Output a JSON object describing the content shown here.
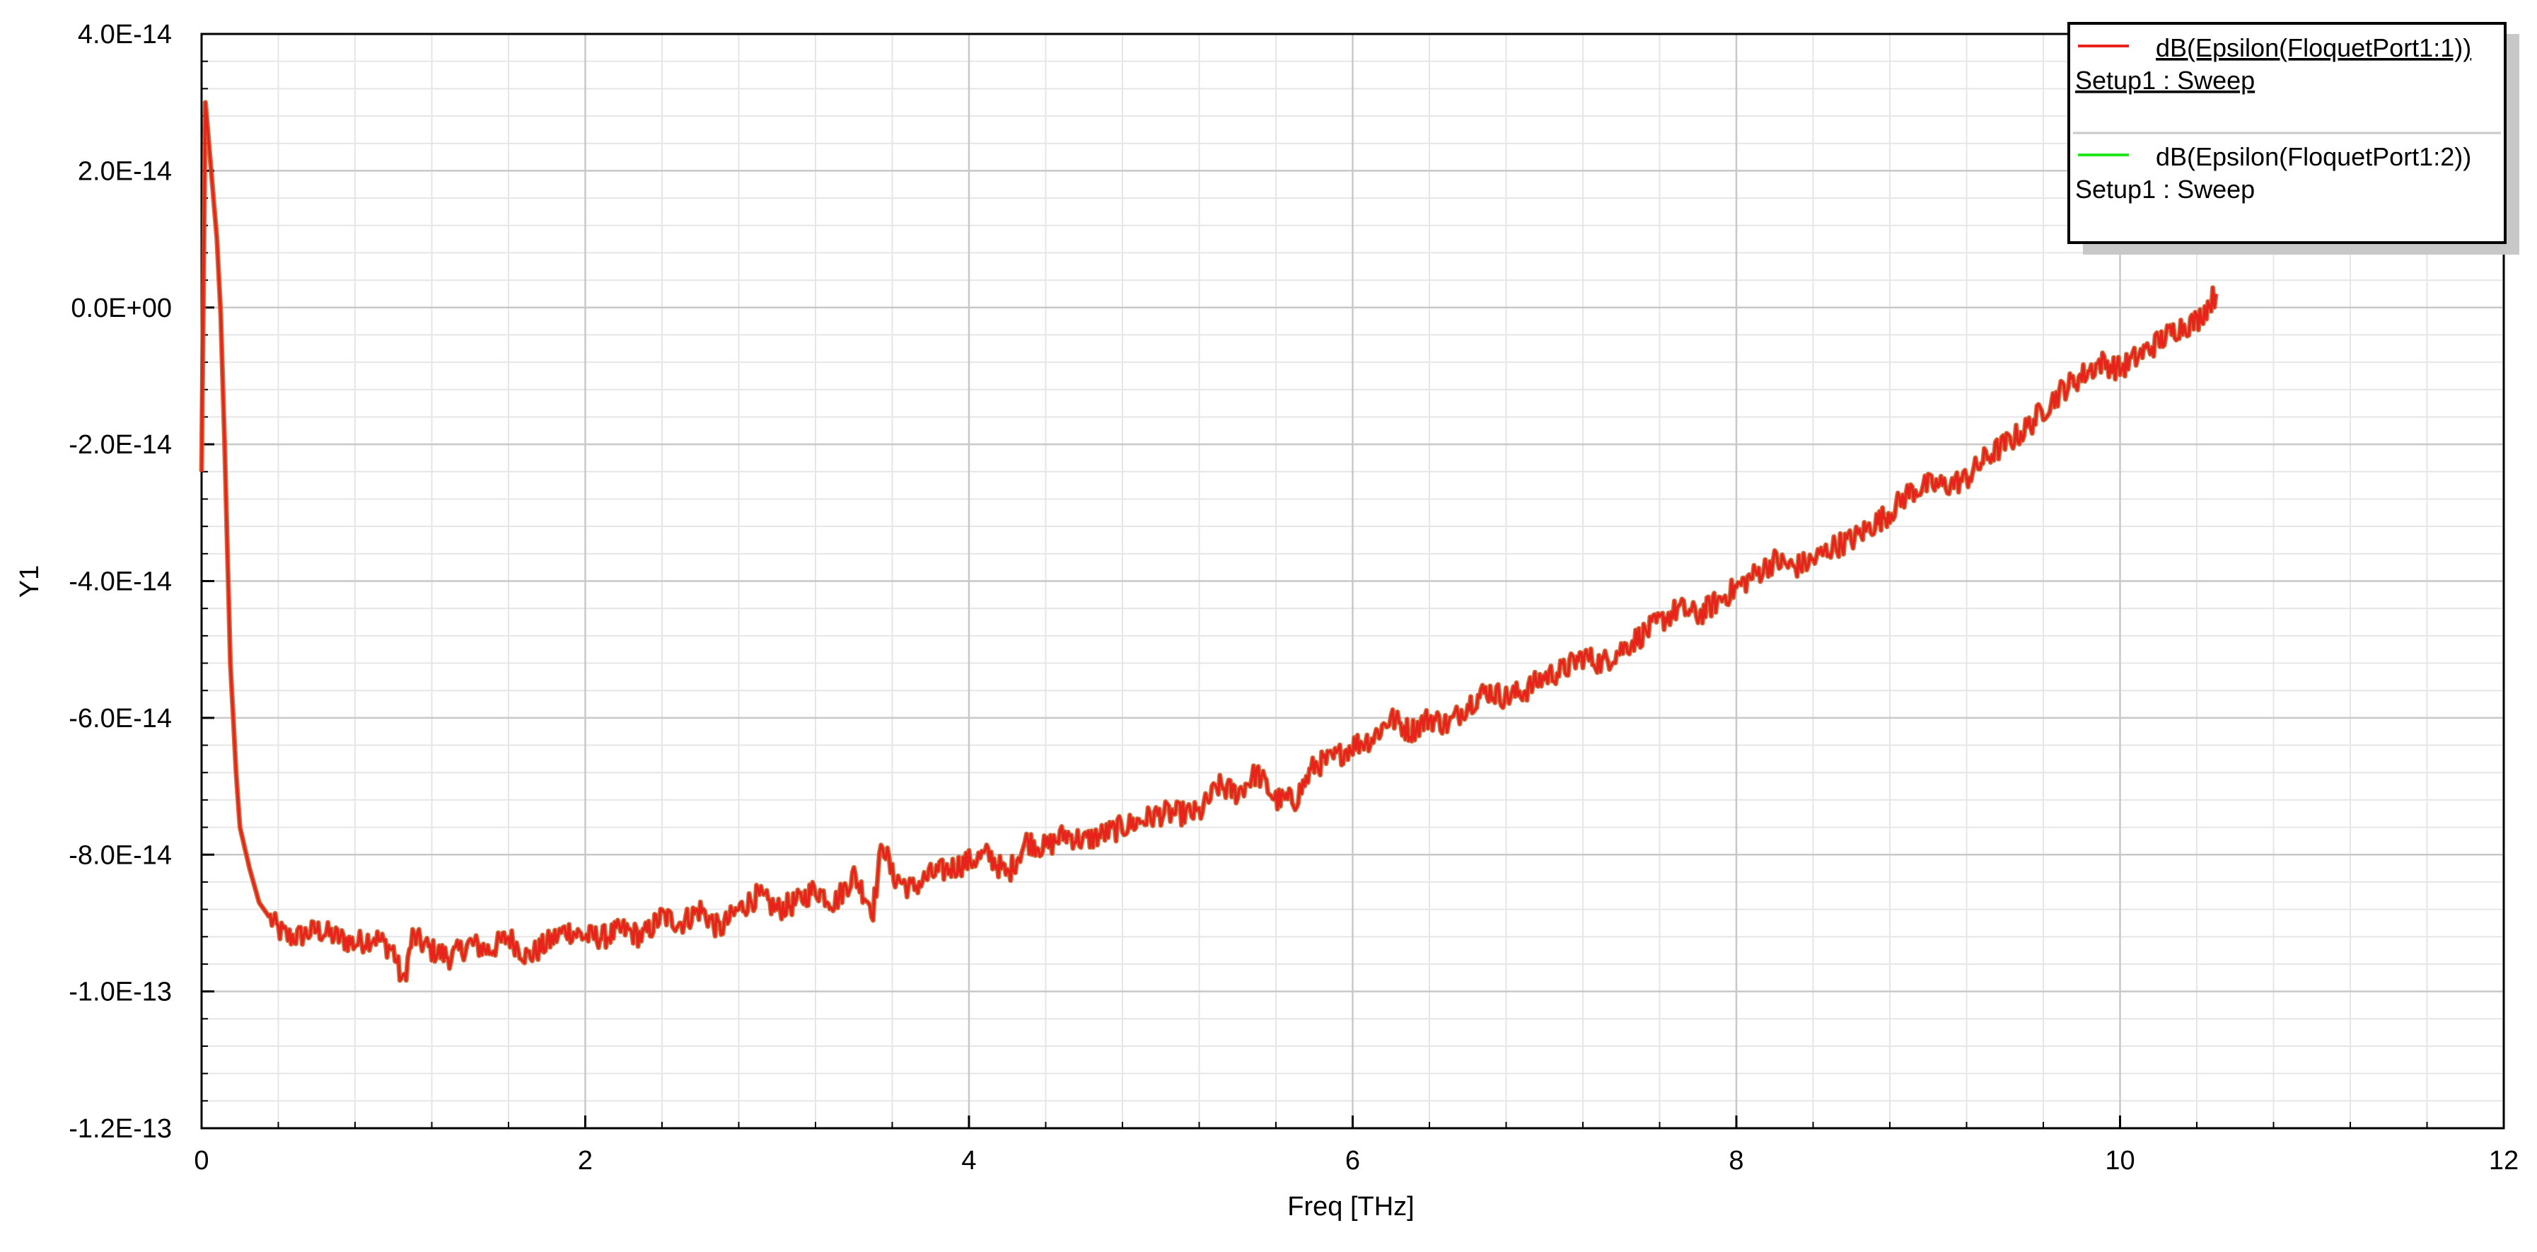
{
  "chart_data": {
    "type": "line",
    "title": "",
    "xlabel": "Freq [THz]",
    "ylabel": "Y1",
    "xlim": [
      0,
      12
    ],
    "ylim": [
      -1.2e-13,
      4e-14
    ],
    "x_ticks": [
      0,
      2,
      4,
      6,
      8,
      10,
      12
    ],
    "x_tick_labels": [
      "0",
      "2",
      "4",
      "6",
      "8",
      "10",
      "12"
    ],
    "y_ticks": [
      4e-14,
      2e-14,
      0,
      -2e-14,
      -4e-14,
      -6e-14,
      -8e-14,
      -1e-13,
      -1.2e-13
    ],
    "y_tick_labels": [
      "4.0E-14",
      "2.0E-14",
      "0.0E+00",
      "-2.0E-14",
      "-4.0E-14",
      "-6.0E-14",
      "-8.0E-14",
      "-1.0E-13",
      "-1.2E-13"
    ],
    "grid": true,
    "legend_position": "top-right",
    "colors": {
      "series1": "#e8231c",
      "series2": "#22e61c",
      "overlap": "#c8561e",
      "grid_major": "#c8c8c8",
      "grid_minor": "#e6e6e6"
    },
    "series": [
      {
        "name": "dB(Epsilon(FloquetPort1:1))",
        "legend_sub": "Setup1 : Sweep",
        "color": "#e8231c",
        "x": [
          0,
          0.02,
          0.05,
          0.08,
          0.1,
          0.12,
          0.15,
          0.18,
          0.2,
          0.25,
          0.3,
          0.35,
          0.4,
          0.45,
          0.5,
          0.6,
          0.7,
          0.8,
          0.9,
          1.0,
          1.05,
          1.1,
          1.2,
          1.3,
          1.4,
          1.5,
          1.6,
          1.7,
          1.8,
          1.9,
          2.0,
          2.1,
          2.2,
          2.3,
          2.4,
          2.5,
          2.6,
          2.7,
          2.8,
          2.9,
          3.0,
          3.1,
          3.2,
          3.3,
          3.4,
          3.5,
          3.55,
          3.6,
          3.7,
          3.8,
          3.9,
          4.0,
          4.1,
          4.2,
          4.3,
          4.4,
          4.5,
          4.6,
          4.7,
          4.8,
          4.9,
          5.0,
          5.1,
          5.2,
          5.3,
          5.4,
          5.5,
          5.6,
          5.7,
          5.8,
          5.9,
          6.0,
          6.1,
          6.2,
          6.3,
          6.4,
          6.5,
          6.6,
          6.7,
          6.8,
          6.9,
          7.0,
          7.1,
          7.2,
          7.3,
          7.4,
          7.5,
          7.6,
          7.7,
          7.8,
          7.9,
          8.0,
          8.1,
          8.2,
          8.3,
          8.4,
          8.5,
          8.6,
          8.7,
          8.8,
          8.9,
          9.0,
          9.1,
          9.2,
          9.3,
          9.4,
          9.5,
          9.6,
          9.7,
          9.8,
          9.9,
          10.0,
          10.1,
          10.2,
          10.3,
          10.4,
          10.5
        ],
        "y": [
          -2.4e-14,
          3e-14,
          2e-14,
          1e-14,
          -1e-15,
          -2e-14,
          -5.2e-14,
          -6.8e-14,
          -7.6e-14,
          -8.2e-14,
          -8.7e-14,
          -8.9e-14,
          -9.1e-14,
          -9.2e-14,
          -9.2e-14,
          -9.1e-14,
          -9.2e-14,
          -9.3e-14,
          -9.2e-14,
          -9.4e-14,
          -9.9e-14,
          -9.2e-14,
          -9.4e-14,
          -9.5e-14,
          -9.3e-14,
          -9.4e-14,
          -9.2e-14,
          -9.5e-14,
          -9.3e-14,
          -9.1e-14,
          -9.2e-14,
          -9.2e-14,
          -9.1e-14,
          -9.2e-14,
          -8.9e-14,
          -9e-14,
          -8.8e-14,
          -9.1e-14,
          -8.8e-14,
          -8.6e-14,
          -8.8e-14,
          -8.7e-14,
          -8.5e-14,
          -8.7e-14,
          -8.3e-14,
          -8.8e-14,
          -7.8e-14,
          -8.3e-14,
          -8.5e-14,
          -8.3e-14,
          -8.2e-14,
          -8.1e-14,
          -8e-14,
          -8.3e-14,
          -7.8e-14,
          -7.9e-14,
          -7.7e-14,
          -7.8e-14,
          -7.7e-14,
          -7.6e-14,
          -7.5e-14,
          -7.4e-14,
          -7.4e-14,
          -7.4e-14,
          -7e-14,
          -7.1e-14,
          -6.8e-14,
          -7.2e-14,
          -7.2e-14,
          -6.7e-14,
          -6.6e-14,
          -6.4e-14,
          -6.3e-14,
          -6e-14,
          -6.2e-14,
          -6e-14,
          -6.1e-14,
          -5.8e-14,
          -5.6e-14,
          -5.7e-14,
          -5.6e-14,
          -5.4e-14,
          -5.3e-14,
          -5.1e-14,
          -5.2e-14,
          -5e-14,
          -4.8e-14,
          -4.6e-14,
          -4.4e-14,
          -4.5e-14,
          -4.3e-14,
          -4.1e-14,
          -3.9e-14,
          -3.7e-14,
          -3.8e-14,
          -3.7e-14,
          -3.5e-14,
          -3.4e-14,
          -3.2e-14,
          -3e-14,
          -2.7e-14,
          -2.6e-14,
          -2.6e-14,
          -2.5e-14,
          -2.2e-14,
          -2e-14,
          -1.8e-14,
          -1.5e-14,
          -1.2e-14,
          -1e-14,
          -8e-15,
          -9e-15,
          -7e-15,
          -5e-15,
          -3e-15,
          -2e-15,
          2e-15
        ]
      },
      {
        "name": "dB(Epsilon(FloquetPort1:2))",
        "legend_sub": "Setup1 : Sweep",
        "color": "#22e61c"
      }
    ]
  }
}
